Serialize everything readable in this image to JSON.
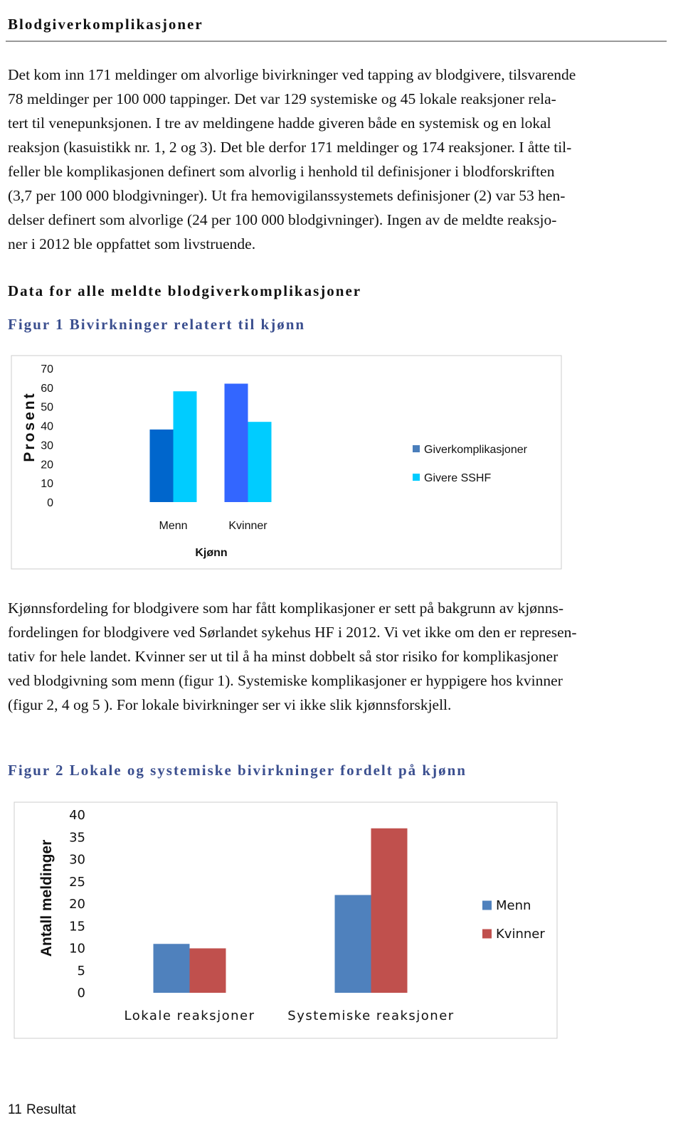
{
  "heading": "Blodgiverkomplikasjoner",
  "intro": [
    "Det kom inn 171 meldinger om alvorlige bivirkninger ved tapping av blodgivere, tilsvarende",
    "78 meldinger per 100 000 tappinger. Det var 129 systemiske og 45 lokale reaksjoner rela-",
    "tert til venepunksjonen. I tre av meldingene hadde giveren både en systemisk og en lokal",
    "reaksjon (kasuistikk nr. 1, 2 og 3). Det ble derfor 171 meldinger og 174 reaksjoner. I åtte til-",
    "feller ble komplikasjonen definert som alvorlig i henhold til definisjoner i blodforskriften",
    "(3,7 per 100 000 blodgivninger). Ut fra hemovigilanssystemets definisjoner (2) var 53 hen-",
    "delser definert som alvorlige (24 per 100 000 blodgivninger).  Ingen av de meldte reaksjo-",
    "ner i 2012 ble oppfattet som livstruende."
  ],
  "section_title": "Data for alle meldte blodgiverkomplikasjoner",
  "figure_captions": [
    "Figur 1 Bivirkninger relatert til kjønn",
    "Figur 2 Lokale og systemiske bivirkninger fordelt på kjønn"
  ],
  "discussion": [
    "Kjønnsfordeling for blodgivere som har fått komplikasjoner er sett på bakgrunn av kjønns-",
    "fordelingen for blodgivere ved Sørlandet sykehus HF i 2012. Vi vet ikke om den er represen-",
    "tativ for hele landet. Kvinner ser ut til å ha minst dobbelt så stor risiko for komplikasjoner",
    "ved blodgivning som menn (figur 1). Systemiske komplikasjoner er hyppigere hos kvinner",
    "(figur 2, 4 og 5 ). For lokale bivirkninger ser vi ikke slik kjønnsforskjell."
  ],
  "footer": {
    "page": "11",
    "section": "Resultat"
  },
  "chart_data": [
    {
      "type": "bar",
      "x_label": "Kjønn",
      "y_label": "Prosent",
      "categories": [
        "Menn",
        "Kvinner"
      ],
      "series": [
        {
          "name": "Giverkomplikasjoner",
          "color": "#4a7ebb",
          "point_colors": [
            "#0066cc",
            "#3366ff"
          ],
          "values": [
            38,
            62
          ]
        },
        {
          "name": "Givere SSHF",
          "color": "#00ccff",
          "values": [
            58,
            42
          ]
        }
      ],
      "ylim": [
        0,
        70
      ],
      "yticks": [
        0,
        10,
        20,
        30,
        40,
        50,
        60,
        70
      ],
      "grid": false,
      "legend": "right"
    },
    {
      "type": "bar",
      "y_label": "Antall meldinger",
      "categories": [
        "Lokale reaksjoner",
        "Systemiske reaksjoner"
      ],
      "series": [
        {
          "name": "Menn",
          "color": "#4f81bd",
          "values": [
            11,
            22
          ]
        },
        {
          "name": "Kvinner",
          "color": "#c0504d",
          "values": [
            10,
            37
          ]
        }
      ],
      "ylim": [
        0,
        40
      ],
      "yticks": [
        0,
        5,
        10,
        15,
        20,
        25,
        30,
        35,
        40
      ],
      "grid": false,
      "legend": "right"
    }
  ]
}
